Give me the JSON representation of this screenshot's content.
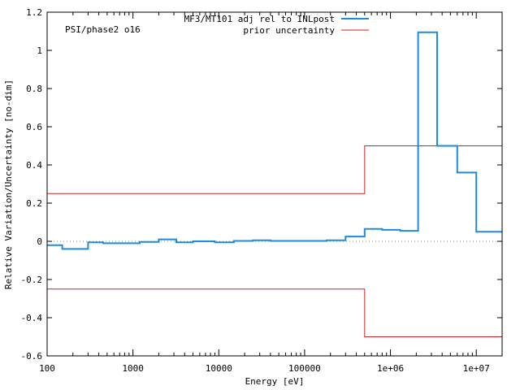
{
  "chart_data": {
    "type": "line",
    "title": "",
    "annotation": "PSI/phase2 o16",
    "xlabel": "Energy [eV]",
    "ylabel": "Relative Variation/Uncertainty [no-dim]",
    "x_scale": "log",
    "xlim": [
      100,
      20000000
    ],
    "ylim": [
      -0.6,
      1.2
    ],
    "grid": false,
    "legend_position": "top-right",
    "x_ticks": [
      {
        "value": 100,
        "label": "100"
      },
      {
        "value": 1000,
        "label": "1000"
      },
      {
        "value": 10000,
        "label": "10000"
      },
      {
        "value": 100000,
        "label": "100000"
      },
      {
        "value": 1000000,
        "label": "1e+06"
      },
      {
        "value": 10000000,
        "label": "1e+07"
      }
    ],
    "y_ticks": [
      {
        "value": -0.6,
        "label": "-0.6"
      },
      {
        "value": -0.4,
        "label": "-0.4"
      },
      {
        "value": -0.2,
        "label": "-0.2"
      },
      {
        "value": 0,
        "label": "0"
      },
      {
        "value": 0.2,
        "label": "0.2"
      },
      {
        "value": 0.4,
        "label": "0.4"
      },
      {
        "value": 0.6,
        "label": "0.6"
      },
      {
        "value": 0.8,
        "label": "0.8"
      },
      {
        "value": 1,
        "label": "1"
      },
      {
        "value": 1.2,
        "label": "1.2"
      }
    ],
    "series": [
      {
        "name": "MF3/MT101 adj rel to INLpost",
        "color": "#1e8ae0",
        "style": "step",
        "steps": [
          {
            "x0": 100,
            "x1": 150,
            "y": -0.02
          },
          {
            "x0": 150,
            "x1": 300,
            "y": -0.04
          },
          {
            "x0": 300,
            "x1": 450,
            "y": -0.005
          },
          {
            "x0": 450,
            "x1": 1200,
            "y": -0.01
          },
          {
            "x0": 1200,
            "x1": 2000,
            "y": -0.003
          },
          {
            "x0": 2000,
            "x1": 3200,
            "y": 0.01
          },
          {
            "x0": 3200,
            "x1": 5000,
            "y": -0.005
          },
          {
            "x0": 5000,
            "x1": 9000,
            "y": 0
          },
          {
            "x0": 9000,
            "x1": 15000,
            "y": -0.005
          },
          {
            "x0": 15000,
            "x1": 25000,
            "y": 0.002
          },
          {
            "x0": 25000,
            "x1": 40000,
            "y": 0.005
          },
          {
            "x0": 40000,
            "x1": 180000,
            "y": 0.002
          },
          {
            "x0": 180000,
            "x1": 300000,
            "y": 0.005
          },
          {
            "x0": 300000,
            "x1": 500000,
            "y": 0.025
          },
          {
            "x0": 500000,
            "x1": 800000,
            "y": 0.065
          },
          {
            "x0": 800000,
            "x1": 1300000,
            "y": 0.06
          },
          {
            "x0": 1300000,
            "x1": 2100000,
            "y": 0.055
          },
          {
            "x0": 2100000,
            "x1": 3500000,
            "y": 1.095
          },
          {
            "x0": 3500000,
            "x1": 6000000,
            "y": 0.5
          },
          {
            "x0": 6000000,
            "x1": 10000000,
            "y": 0.36
          },
          {
            "x0": 10000000,
            "x1": 20000000,
            "y": 0.05
          }
        ]
      },
      {
        "name": "prior uncertainty",
        "color": "#cc2222",
        "style": "step",
        "mirrored": true,
        "steps": [
          {
            "x0": 100,
            "x1": 500000,
            "y": 0.25
          },
          {
            "x0": 500000,
            "x1": 20000000,
            "y": 0.5
          }
        ]
      }
    ]
  }
}
